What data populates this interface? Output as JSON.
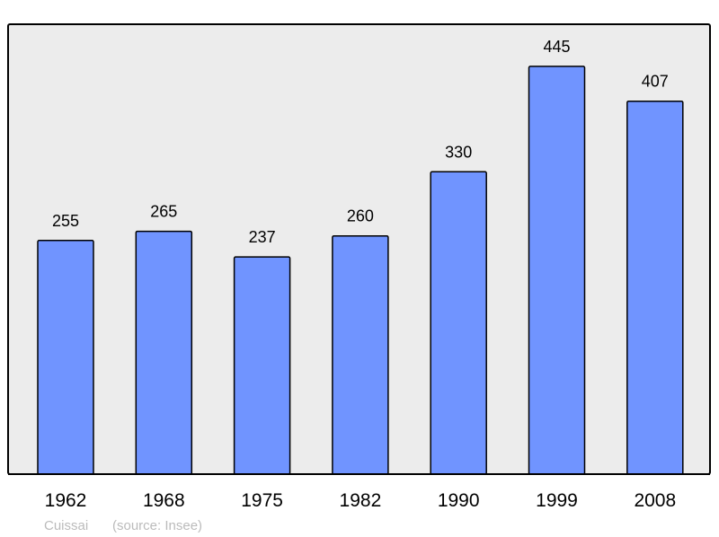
{
  "chart_data": {
    "type": "bar",
    "title": "",
    "xlabel": "",
    "ylabel": "",
    "categories": [
      "1962",
      "1968",
      "1975",
      "1982",
      "1990",
      "1999",
      "2008"
    ],
    "values": [
      255,
      265,
      237,
      260,
      330,
      445,
      407
    ],
    "data_labels": [
      "255",
      "265",
      "237",
      "260",
      "330",
      "445",
      "407"
    ],
    "ylim": [
      0,
      491
    ],
    "grid": false,
    "legend": "none",
    "bar_color": "#7094ff",
    "plot_background": "#ececec"
  },
  "footer": {
    "commune": "Cuissai",
    "source": "(source: Insee)"
  }
}
